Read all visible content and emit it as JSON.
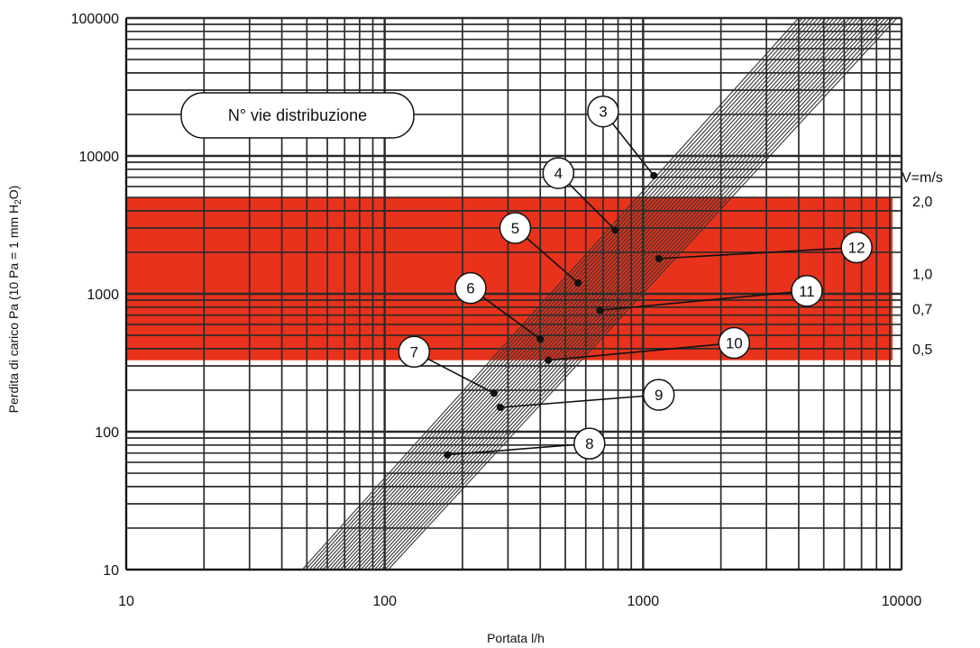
{
  "chart_data": {
    "type": "line",
    "title": "",
    "xlabel": "Portata l/h",
    "ylabel": "Perdita di carico Pa (10 Pa = 1 mm H2O)",
    "ylabel_parts": {
      "main": "Perdita di carico Pa (10 Pa = 1 mm H",
      "sub": "2",
      "tail": "O)"
    },
    "xscale": "log",
    "yscale": "log",
    "xlim": [
      10,
      10000
    ],
    "ylim": [
      10,
      100000
    ],
    "x_ticks": [
      "10",
      "100",
      "1000",
      "10000"
    ],
    "y_ticks": [
      "10",
      "100",
      "1000",
      "10000",
      "100000"
    ],
    "grid": true,
    "legend_box": "N° vie distribuzione",
    "highlight_band": {
      "color": "#e8321c",
      "y_from": 330,
      "y_to": 5000
    },
    "velocity_title": "V=m/s",
    "velocity_labels": [
      {
        "label": "2,0",
        "y": 4700
      },
      {
        "label": "1,0",
        "y": 1400
      },
      {
        "label": "0,7",
        "y": 780
      },
      {
        "label": "0,5",
        "y": 400
      }
    ],
    "series": [
      {
        "name": "3",
        "points": [
          [
            1100,
            7200
          ]
        ]
      },
      {
        "name": "4",
        "points": [
          [
            780,
            2900
          ]
        ]
      },
      {
        "name": "5",
        "points": [
          [
            560,
            1200
          ]
        ]
      },
      {
        "name": "6",
        "points": [
          [
            400,
            470
          ]
        ]
      },
      {
        "name": "7",
        "points": [
          [
            265,
            190
          ]
        ]
      },
      {
        "name": "8",
        "points": [
          [
            175,
            68
          ]
        ]
      },
      {
        "name": "9",
        "points": [
          [
            280,
            150
          ]
        ]
      },
      {
        "name": "10",
        "points": [
          [
            430,
            330
          ]
        ]
      },
      {
        "name": "11",
        "points": [
          [
            680,
            760
          ]
        ]
      },
      {
        "name": "12",
        "points": [
          [
            1150,
            1800
          ]
        ]
      }
    ],
    "callouts": [
      {
        "label": "3",
        "x": 700,
        "y": 21000
      },
      {
        "label": "4",
        "x": 470,
        "y": 7500
      },
      {
        "label": "5",
        "x": 320,
        "y": 3000
      },
      {
        "label": "6",
        "x": 215,
        "y": 1100
      },
      {
        "label": "7",
        "x": 130,
        "y": 380
      },
      {
        "label": "8",
        "x": 620,
        "y": 82
      },
      {
        "label": "9",
        "x": 1150,
        "y": 185
      },
      {
        "label": "10",
        "x": 2250,
        "y": 440
      },
      {
        "label": "11",
        "x": 4300,
        "y": 1050
      },
      {
        "label": "12",
        "x": 6700,
        "y": 2170
      }
    ]
  }
}
